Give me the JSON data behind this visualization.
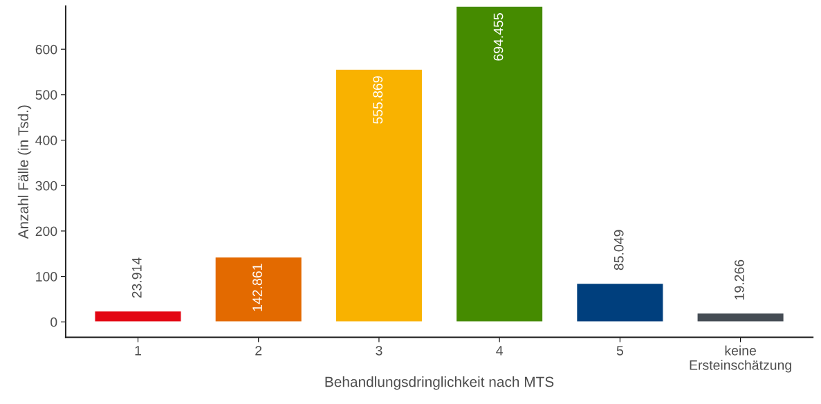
{
  "chart_data": {
    "type": "bar",
    "xlabel": "Behandlungsdringlichkeit nach MTS",
    "ylabel": "Anzahl Fälle (in Tsd.)",
    "categories": [
      "1",
      "2",
      "3",
      "4",
      "5",
      "keine\nErsteinschätzung"
    ],
    "values": [
      23.914,
      142.861,
      555.869,
      694.455,
      85.049,
      19.266
    ],
    "colors": [
      "#e30613",
      "#e36a00",
      "#f9b200",
      "#458b00",
      "#003f7d",
      "#454c54"
    ],
    "ylim": [
      -34,
      695
    ],
    "yticks": [
      0,
      100,
      200,
      300,
      400,
      500,
      600
    ],
    "data_labels": true,
    "grid": false,
    "legend": false
  }
}
